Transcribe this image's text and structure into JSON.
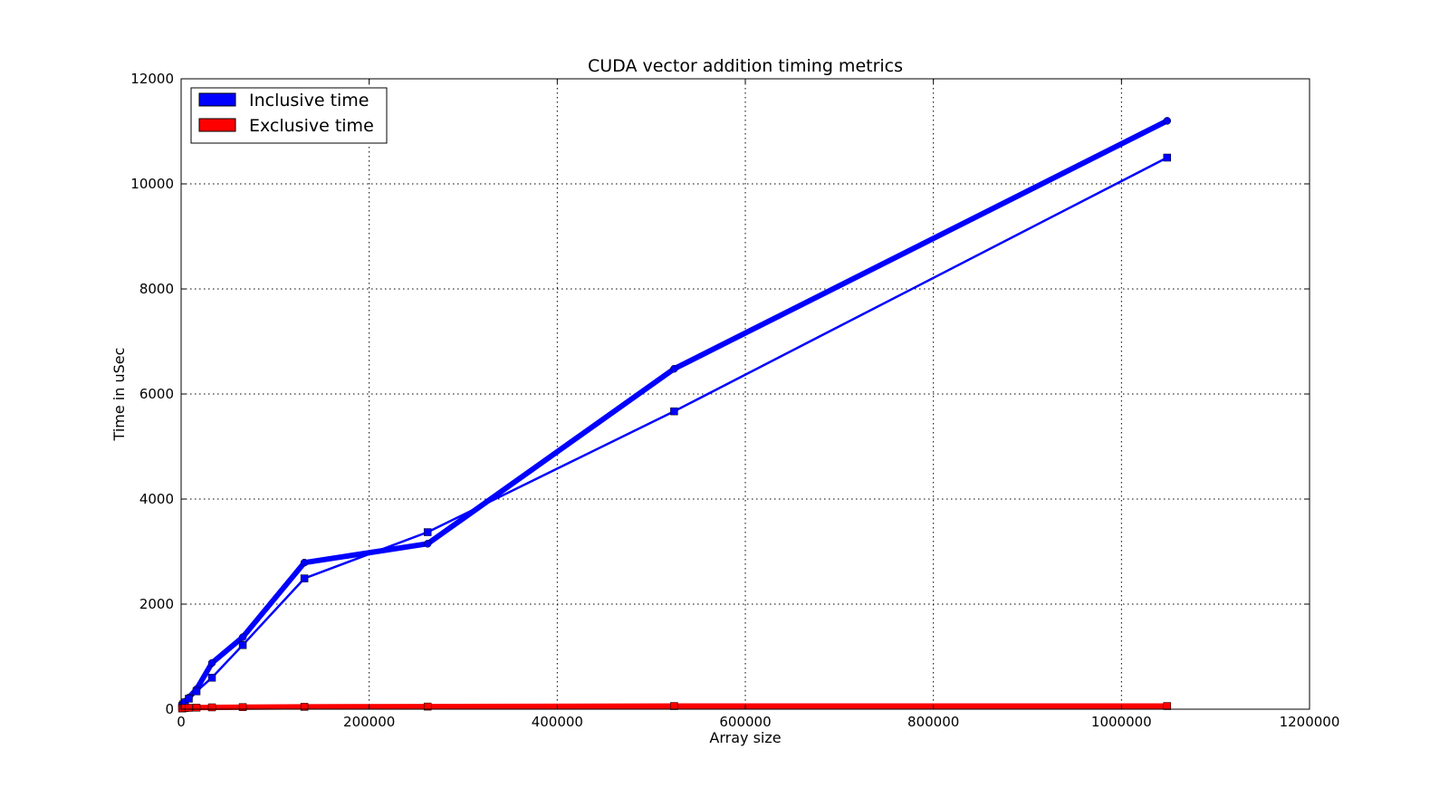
{
  "chart_data": {
    "type": "line",
    "title": "CUDA vector addition timing metrics",
    "xlabel": "Array size",
    "ylabel": "Time in uSec",
    "xlim": [
      0,
      1200000
    ],
    "ylim": [
      0,
      12000
    ],
    "xticks": [
      0,
      200000,
      400000,
      600000,
      800000,
      1000000,
      1200000
    ],
    "yticks": [
      0,
      2000,
      4000,
      6000,
      8000,
      10000,
      12000
    ],
    "grid": true,
    "legend_position": "top-left",
    "legend": [
      {
        "label": "Inclusive time",
        "color": "#0000ff"
      },
      {
        "label": "Exclusive time",
        "color": "#ff0000"
      }
    ],
    "x": [
      1024,
      2048,
      4096,
      8192,
      16384,
      32768,
      65536,
      131072,
      262144,
      524288,
      1048576
    ],
    "series": [
      {
        "color": "#0000ff",
        "stroke": "thick",
        "marker": "circle",
        "values": [
          70,
          100,
          140,
          220,
          380,
          880,
          1370,
          2790,
          3150,
          6480,
          11200
        ]
      },
      {
        "color": "#0000ff",
        "stroke": "thin",
        "marker": "square",
        "values": [
          60,
          90,
          130,
          200,
          340,
          600,
          1220,
          2490,
          3370,
          5670,
          10500
        ]
      },
      {
        "color": "#ff0000",
        "stroke": "thick",
        "marker": "square",
        "values": [
          15,
          18,
          22,
          26,
          30,
          35,
          40,
          45,
          50,
          60,
          60
        ]
      }
    ]
  }
}
